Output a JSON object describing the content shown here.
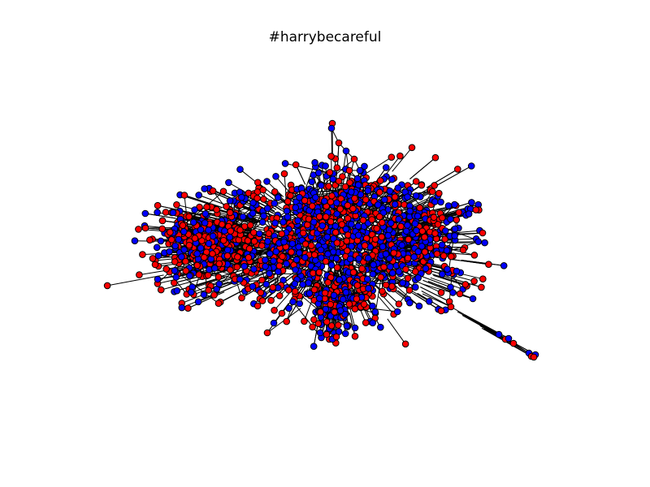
{
  "figure": {
    "title": "#harrybecareful",
    "background": "#ffffff"
  },
  "network": {
    "node_colors": [
      "#ff0000",
      "#0000ff"
    ],
    "edge_color": "#000000",
    "node_outline": "#000000"
  }
}
